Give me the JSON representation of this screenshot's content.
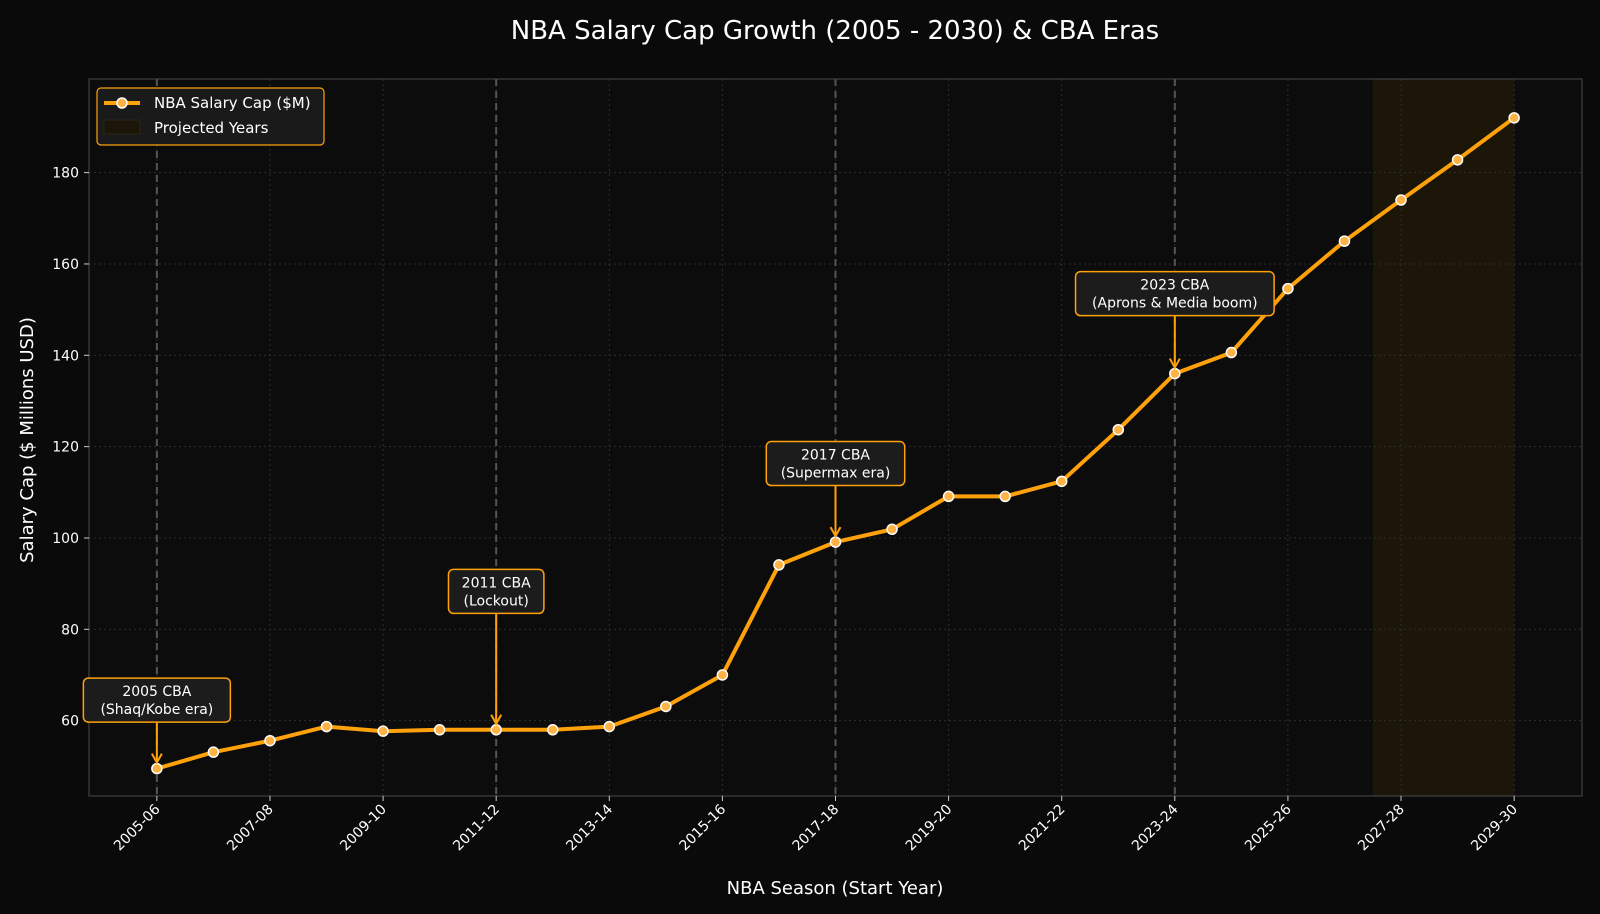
{
  "chart_data": {
    "type": "line",
    "title": "NBA Salary Cap Growth (2005 - 2030) & CBA Eras",
    "xlabel": "NBA Season (Start Year)",
    "ylabel": "Salary Cap ($ Millions USD)",
    "x": [
      2005,
      2006,
      2007,
      2008,
      2009,
      2010,
      2011,
      2012,
      2013,
      2014,
      2015,
      2016,
      2017,
      2018,
      2019,
      2020,
      2021,
      2022,
      2023,
      2024,
      2025,
      2026,
      2027,
      2028,
      2029
    ],
    "series": [
      {
        "name": "NBA Salary Cap ($M)",
        "values": [
          49.5,
          53.1,
          55.6,
          58.7,
          57.7,
          58.0,
          58.0,
          58.0,
          58.7,
          63.1,
          70.0,
          94.1,
          99.1,
          101.9,
          109.1,
          109.1,
          112.4,
          123.7,
          136.0,
          140.6,
          154.6,
          165.0,
          174.0,
          182.8,
          192.0
        ]
      }
    ],
    "xlim": [
      2003.8,
      2030.2
    ],
    "ylim": [
      43.5,
      200.5
    ],
    "x_ticks": [
      2005,
      2007,
      2009,
      2011,
      2013,
      2015,
      2017,
      2019,
      2021,
      2023,
      2025,
      2027,
      2029
    ],
    "x_tick_labels": [
      "2005-06",
      "2007-08",
      "2009-10",
      "2011-12",
      "2013-14",
      "2015-16",
      "2017-18",
      "2019-20",
      "2021-22",
      "2023-24",
      "2025-26",
      "2027-28",
      "2029-30"
    ],
    "y_ticks": [
      60,
      80,
      100,
      120,
      140,
      160,
      180
    ],
    "y_tick_labels": [
      "60",
      "80",
      "100",
      "120",
      "140",
      "160",
      "180"
    ],
    "projected_range": [
      2026,
      2029
    ],
    "projected_label": "Projected Years",
    "cba_lines": [
      2005,
      2011,
      2017,
      2023
    ],
    "annotations": [
      {
        "x": 2005,
        "y": 49.5,
        "line1": "2005 CBA",
        "line2": "(Shaq/Kobe era)",
        "label_y": 64.5
      },
      {
        "x": 2011,
        "y": 58.0,
        "line1": "2011 CBA",
        "line2": "(Lockout)",
        "label_y": 88.3
      },
      {
        "x": 2017,
        "y": 99.1,
        "line1": "2017 CBA",
        "line2": "(Supermax era)",
        "label_y": 116.3
      },
      {
        "x": 2023,
        "y": 136.0,
        "line1": "2023 CBA",
        "line2": "(Aprons & Media boom)",
        "label_y": 153.5
      }
    ],
    "grid": true,
    "legend_position": "top-left",
    "colors": {
      "background": "#0a0a0a",
      "plot_background": "#0c0c0c",
      "line": "#ffa10a",
      "marker_fill": "#ffb347",
      "marker_edge": "#ffffff",
      "grid": "#2e2e2e",
      "cba_line": "#555555",
      "projected_fill": "#1b1608",
      "axis": "#4a4a4a",
      "text": "#ffffff",
      "annotation_box": "#1c1c1c",
      "annotation_border": "#ffa10a"
    }
  }
}
